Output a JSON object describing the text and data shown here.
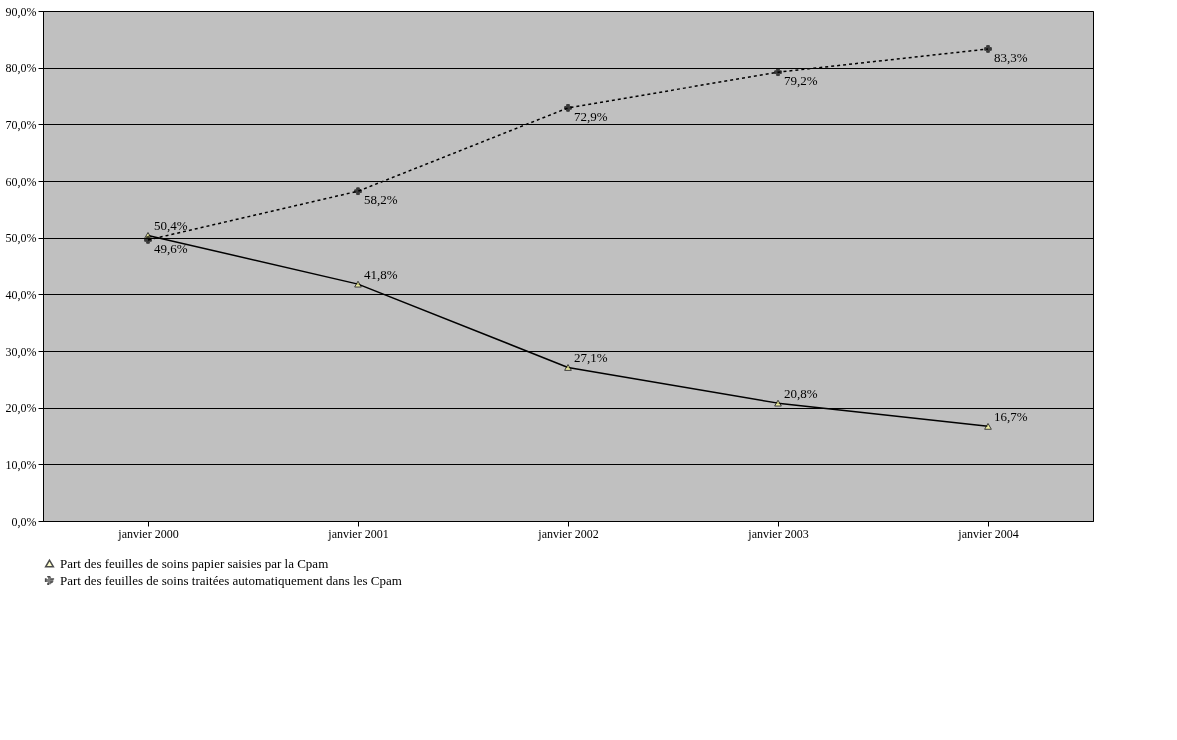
{
  "chart_data": {
    "type": "line",
    "categories": [
      "janvier 2000",
      "janvier 2001",
      "janvier 2002",
      "janvier 2003",
      "janvier 2004"
    ],
    "series": [
      {
        "name": "Part des feuilles de soins papier saisies par la Cpam",
        "color": "#000000",
        "values": [
          50.4,
          41.8,
          27.1,
          20.8,
          16.7
        ],
        "value_labels": [
          "50,4%",
          "41,8%",
          "27,1%",
          "20,8%",
          "16,7%"
        ],
        "marker": "triangle",
        "line_style": "solid"
      },
      {
        "name": "Part des feuilles de soins traitées automatiquement dans les Cpam",
        "color": "#000000",
        "values": [
          49.6,
          58.2,
          72.9,
          79.2,
          83.3
        ],
        "value_labels": [
          "49,6%",
          "58,2%",
          "72,9%",
          "79,2%",
          "83,3%"
        ],
        "marker": "cross",
        "line_style": "dotted"
      }
    ],
    "ylim": [
      0,
      90
    ],
    "yticks": [
      {
        "value": 0,
        "label": "0,0%"
      },
      {
        "value": 10,
        "label": "10,0%"
      },
      {
        "value": 20,
        "label": "20,0%"
      },
      {
        "value": 30,
        "label": "30,0%"
      },
      {
        "value": 40,
        "label": "40,0%"
      },
      {
        "value": 50,
        "label": "50,0%"
      },
      {
        "value": 60,
        "label": "60,0%"
      },
      {
        "value": 70,
        "label": "70,0%"
      },
      {
        "value": 80,
        "label": "80,0%"
      },
      {
        "value": 90,
        "label": "90,0%"
      }
    ],
    "grid": "y",
    "legend": "bottom"
  }
}
